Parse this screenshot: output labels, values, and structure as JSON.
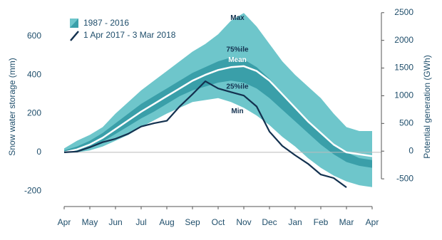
{
  "chart_data": {
    "type": "band-line",
    "categories": [
      "Apr",
      null,
      "May",
      null,
      "Jun",
      null,
      "Jul",
      null,
      "Aug",
      null,
      "Sep",
      null,
      "Oct",
      null,
      "Nov",
      null,
      "Dec",
      null,
      "Jan",
      null,
      "Feb",
      null,
      "Mar",
      null,
      "Apr"
    ],
    "series": [
      {
        "name": "Max",
        "values": [
          20,
          60,
          90,
          130,
          200,
          260,
          320,
          370,
          420,
          470,
          520,
          560,
          610,
          680,
          720,
          650,
          560,
          470,
          400,
          340,
          280,
          200,
          130,
          110,
          110
        ]
      },
      {
        "name": "75%ile",
        "values": [
          10,
          30,
          60,
          100,
          150,
          200,
          250,
          290,
          330,
          370,
          410,
          440,
          470,
          490,
          480,
          440,
          380,
          300,
          230,
          160,
          100,
          40,
          0,
          -30,
          -40
        ]
      },
      {
        "name": "Mean",
        "color": "#ffffff",
        "values": [
          0,
          15,
          40,
          75,
          120,
          165,
          210,
          250,
          290,
          330,
          370,
          400,
          425,
          440,
          445,
          420,
          370,
          300,
          230,
          160,
          100,
          40,
          0,
          -10,
          -20
        ]
      },
      {
        "name": "25%ile",
        "values": [
          0,
          5,
          25,
          55,
          95,
          135,
          175,
          210,
          250,
          290,
          320,
          340,
          360,
          370,
          360,
          330,
          280,
          220,
          160,
          100,
          40,
          -10,
          -50,
          -70,
          -80
        ]
      },
      {
        "name": "Min",
        "values": [
          0,
          0,
          10,
          30,
          60,
          90,
          130,
          165,
          200,
          230,
          260,
          270,
          280,
          260,
          230,
          190,
          140,
          80,
          30,
          -30,
          -80,
          -120,
          -150,
          -170,
          -180
        ]
      },
      {
        "name": "1 Apr 2017 - 3 Mar 2018",
        "color": "#13314f",
        "values": [
          0,
          4,
          26,
          52,
          70,
          96,
          133,
          150,
          163,
          237,
          300,
          367,
          330,
          311,
          293,
          237,
          107,
          33,
          -15,
          -59,
          -115,
          -133,
          -181,
          null,
          null
        ]
      }
    ],
    "band_name": "1987 - 2016",
    "band_colors": [
      "#6ec6cb",
      "#3a9fa9"
    ],
    "ylabel": "Snow water storage (mm)",
    "y2label": "Potential generation (GWh)",
    "ylim": [
      -280,
      750
    ],
    "yticks": [
      -200,
      0,
      200,
      400,
      600
    ],
    "y2lim": [
      -1000,
      2600
    ],
    "y2ticks": [
      -500,
      0,
      500,
      1000,
      1500,
      2000,
      2500
    ]
  }
}
